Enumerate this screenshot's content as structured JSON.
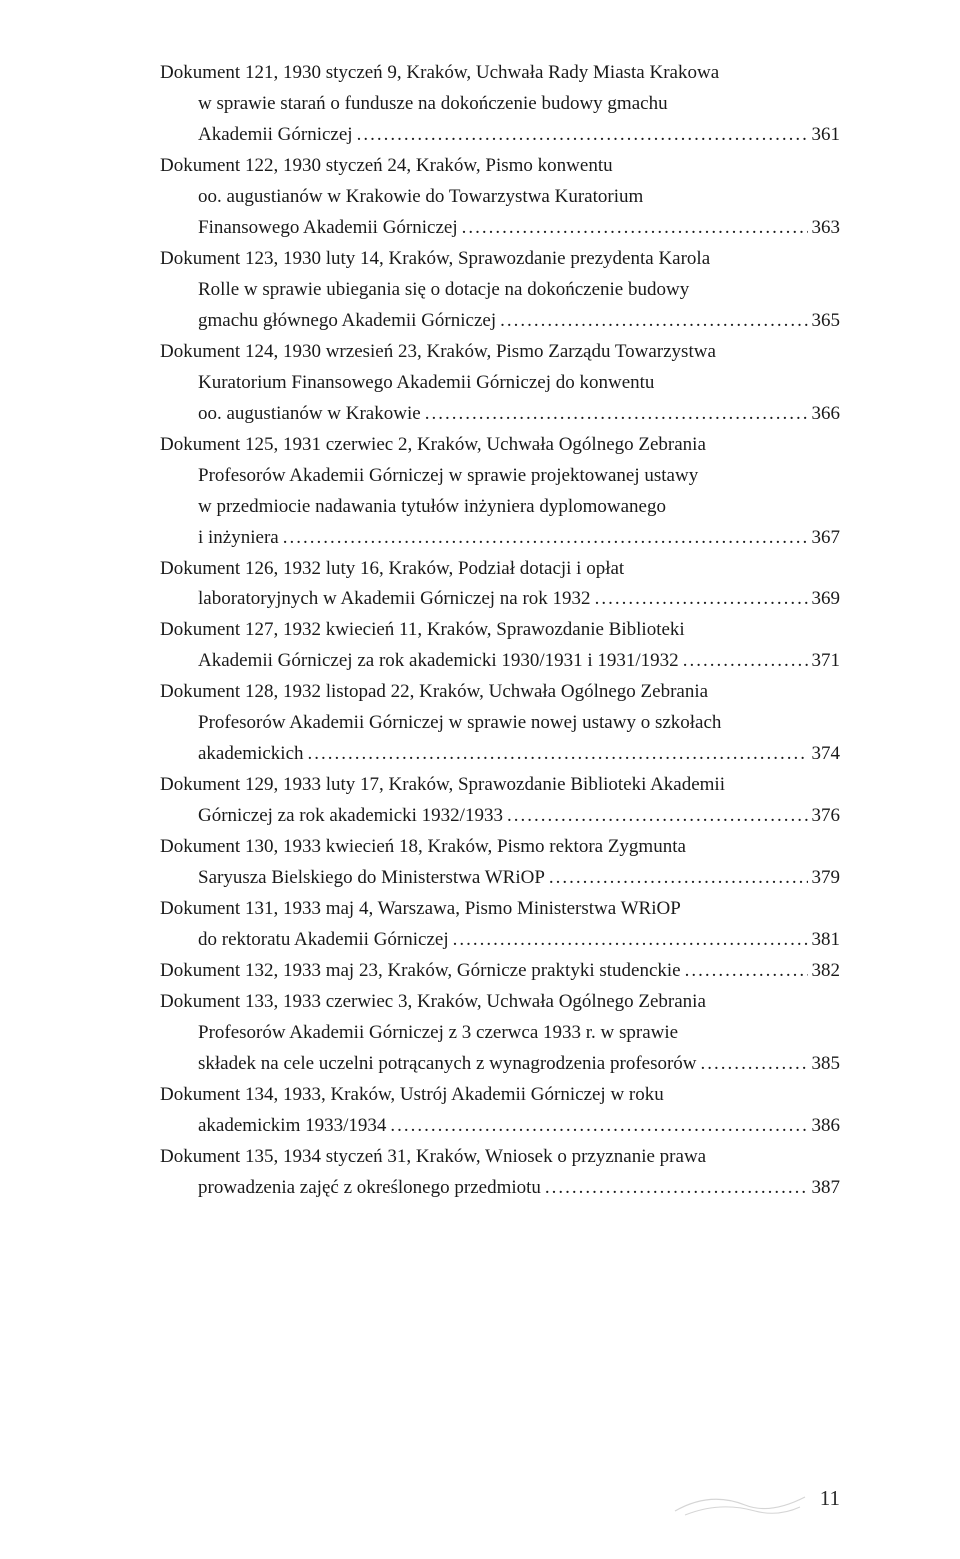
{
  "page_number": "11",
  "dots": "..........................................................................................................................................................",
  "entries": [
    {
      "lines": [
        "Dokument 121, 1930 styczeń 9, Kraków, Uchwała Rady Miasta Krakowa",
        "w sprawie starań o fundusze na dokończenie budowy gmachu"
      ],
      "last": "Akademii Górniczej",
      "page": "361"
    },
    {
      "lines": [
        "Dokument 122, 1930 styczeń 24, Kraków, Pismo konwentu",
        "oo. augustianów w Krakowie do Towarzystwa Kuratorium"
      ],
      "last": "Finansowego Akademii Górniczej",
      "page": "363"
    },
    {
      "lines": [
        "Dokument 123, 1930 luty 14, Kraków, Sprawozdanie prezydenta Karola",
        "Rolle w sprawie ubiegania się o dotacje na dokończenie budowy"
      ],
      "last": "gmachu głównego Akademii Górniczej",
      "page": "365"
    },
    {
      "lines": [
        "Dokument 124, 1930 wrzesień 23, Kraków, Pismo Zarządu Towarzystwa",
        "Kuratorium Finansowego Akademii Górniczej do konwentu"
      ],
      "last": "oo. augustianów w Krakowie",
      "page": "366"
    },
    {
      "lines": [
        "Dokument 125, 1931 czerwiec 2, Kraków, Uchwała Ogólnego Zebrania",
        "Profesorów Akademii Górniczej w sprawie projektowanej ustawy",
        "w przedmiocie nadawania tytułów inżyniera dyplomowanego"
      ],
      "last": "i inżyniera",
      "page": "367"
    },
    {
      "lines": [
        "Dokument 126, 1932 luty 16, Kraków, Podział dotacji i opłat"
      ],
      "last": "laboratoryjnych w Akademii Górniczej na rok 1932",
      "page": "369"
    },
    {
      "lines": [
        "Dokument 127, 1932 kwiecień 11, Kraków, Sprawozdanie Biblioteki"
      ],
      "last": "Akademii Górniczej za rok akademicki 1930/1931 i 1931/1932",
      "page": "371"
    },
    {
      "lines": [
        "Dokument 128, 1932 listopad 22, Kraków, Uchwała Ogólnego Zebrania",
        "Profesorów Akademii Górniczej w sprawie nowej ustawy o szkołach"
      ],
      "last": "akademickich",
      "page": "374"
    },
    {
      "lines": [
        "Dokument 129, 1933 luty 17, Kraków, Sprawozdanie Biblioteki Akademii"
      ],
      "last": "Górniczej za rok akademicki 1932/1933",
      "page": "376"
    },
    {
      "lines": [
        "Dokument 130, 1933 kwiecień 18, Kraków, Pismo rektora Zygmunta"
      ],
      "last": "Saryusza Bielskiego do Ministerstwa WRiOP",
      "page": "379"
    },
    {
      "lines": [
        "Dokument 131, 1933 maj 4, Warszawa, Pismo Ministerstwa WRiOP"
      ],
      "last": "do rektoratu Akademii Górniczej",
      "page": "381"
    },
    {
      "lines": [],
      "last": "Dokument 132, 1933 maj 23, Kraków, Górnicze praktyki studenckie",
      "page": "382",
      "noindent": true
    },
    {
      "lines": [
        "Dokument 133, 1933 czerwiec 3, Kraków, Uchwała Ogólnego Zebrania",
        "Profesorów Akademii Górniczej z 3 czerwca 1933 r. w sprawie"
      ],
      "last": "składek na cele uczelni potrącanych z wynagrodzenia profesorów",
      "page": "385"
    },
    {
      "lines": [
        "Dokument 134, 1933, Kraków, Ustrój Akademii Górniczej w roku"
      ],
      "last": "akademickim 1933/1934",
      "page": "386"
    },
    {
      "lines": [
        "Dokument 135, 1934 styczeń 31, Kraków, Wniosek o przyznanie prawa"
      ],
      "last": "prowadzenia zajęć z określonego przedmiotu",
      "page": "387"
    }
  ]
}
